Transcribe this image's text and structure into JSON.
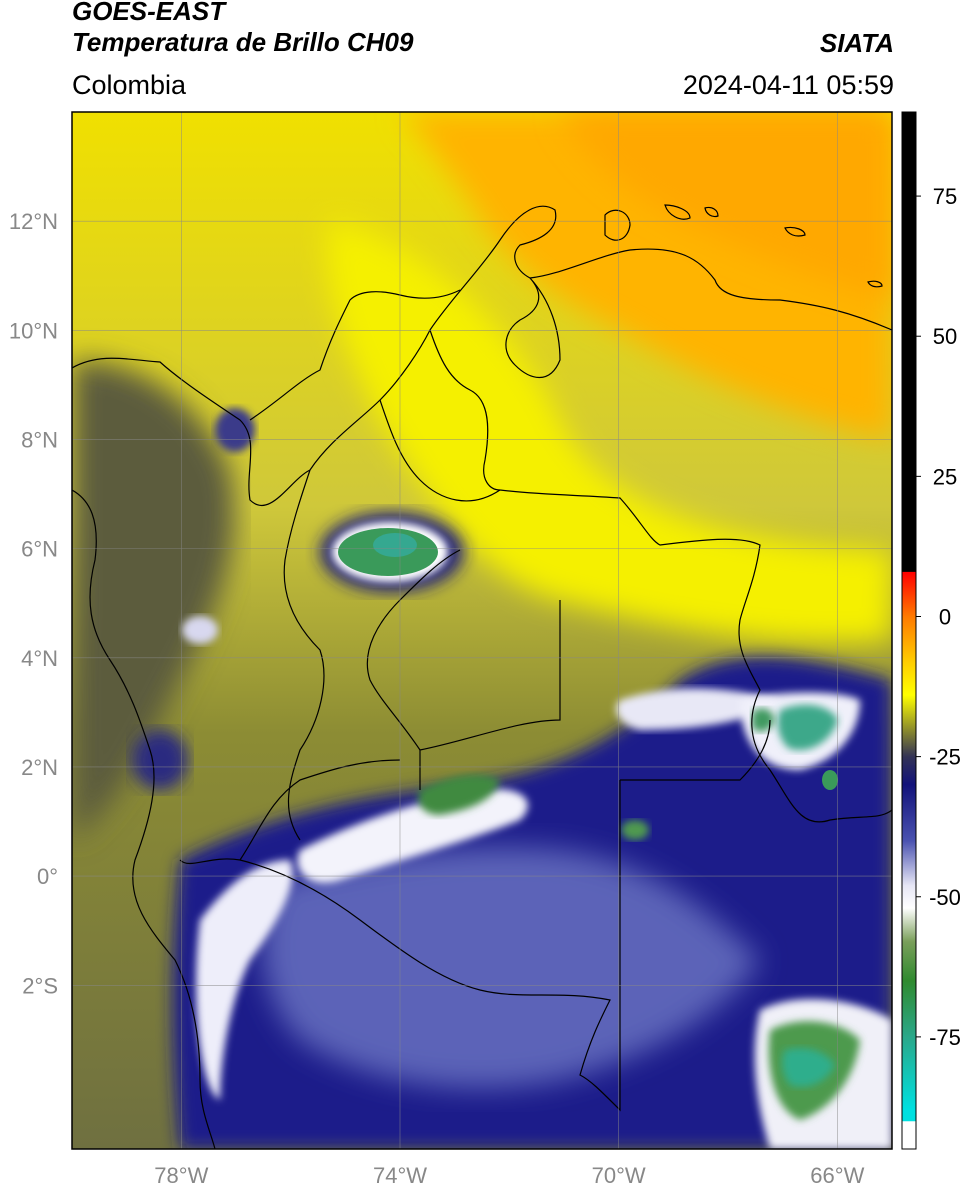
{
  "header": {
    "satellite": "GOES-EAST",
    "product": "Temperatura de Brillo CH09",
    "region": "Colombia",
    "agency": "SIATA",
    "datetime": "2024-04-11 05:59"
  },
  "map": {
    "lon_range": [
      -80,
      -65
    ],
    "lat_range": [
      -5,
      14
    ],
    "lat_ticks": [
      {
        "value": 12,
        "label": "12°N"
      },
      {
        "value": 10,
        "label": "10°N"
      },
      {
        "value": 8,
        "label": "8°N"
      },
      {
        "value": 6,
        "label": "6°N"
      },
      {
        "value": 4,
        "label": "4°N"
      },
      {
        "value": 2,
        "label": "2°N"
      },
      {
        "value": 0,
        "label": "0°"
      },
      {
        "value": -2,
        "label": "2°S"
      }
    ],
    "lon_ticks": [
      {
        "value": -78,
        "label": "78°W"
      },
      {
        "value": -74,
        "label": "74°W"
      },
      {
        "value": -70,
        "label": "70°W"
      },
      {
        "value": -66,
        "label": "66°W"
      }
    ],
    "gridlines": true
  },
  "colorbar": {
    "range": [
      -95,
      90
    ],
    "ticks": [
      {
        "value": 75,
        "label": "75"
      },
      {
        "value": 50,
        "label": "50"
      },
      {
        "value": 25,
        "label": "25"
      },
      {
        "value": 0,
        "label": "0"
      },
      {
        "value": -25,
        "label": "-25"
      },
      {
        "value": -50,
        "label": "-50"
      },
      {
        "value": -75,
        "label": "-75"
      }
    ],
    "stops": [
      {
        "value": 90,
        "color": "#000000"
      },
      {
        "value": 8,
        "color": "#000000"
      },
      {
        "value": 7.9,
        "color": "#ff0000"
      },
      {
        "value": 0,
        "color": "#ff7a00"
      },
      {
        "value": -8,
        "color": "#ffcc00"
      },
      {
        "value": -14,
        "color": "#ffff00"
      },
      {
        "value": -20,
        "color": "#8f8f2a"
      },
      {
        "value": -25,
        "color": "#333355"
      },
      {
        "value": -30,
        "color": "#12127a"
      },
      {
        "value": -40,
        "color": "#4a52b0"
      },
      {
        "value": -48,
        "color": "#e6e6f5"
      },
      {
        "value": -52,
        "color": "#ffffff"
      },
      {
        "value": -58,
        "color": "#7a9f5a"
      },
      {
        "value": -65,
        "color": "#2f8a2f"
      },
      {
        "value": -75,
        "color": "#2aa88a"
      },
      {
        "value": -88,
        "color": "#00e0e0"
      },
      {
        "value": -90,
        "color": "#00e0e0"
      },
      {
        "value": -90.1,
        "color": "#ffffff"
      },
      {
        "value": -95,
        "color": "#ffffff"
      }
    ]
  }
}
